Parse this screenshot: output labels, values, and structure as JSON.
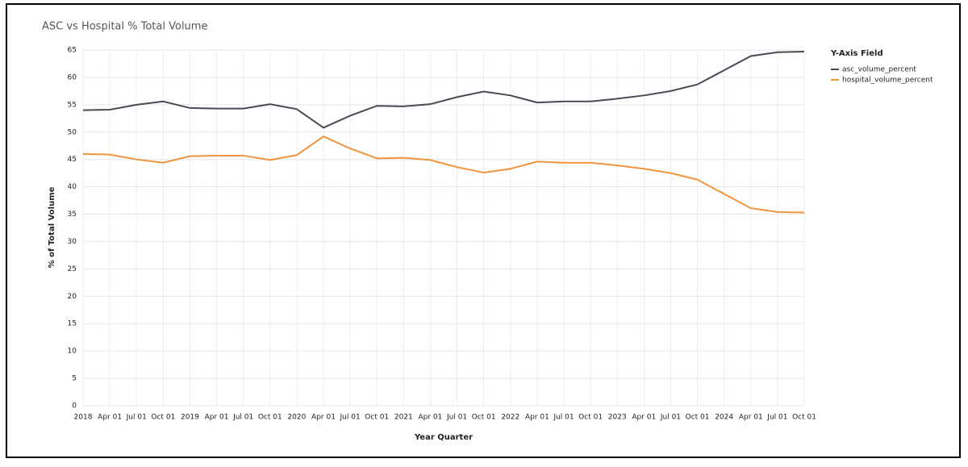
{
  "chart_data": {
    "type": "line",
    "title": "ASC vs Hospital % Total Volume",
    "x_label": "Year Quarter",
    "y_label": "% of Total Volume",
    "legend_title": "Y-Axis Field",
    "legend_position": "right",
    "grid": true,
    "categories": [
      "2018",
      "Apr 01",
      "Jul 01",
      "Oct 01",
      "2019",
      "Apr 01",
      "Jul 01",
      "Oct 01",
      "2020",
      "Apr 01",
      "Jul 01",
      "Oct 01",
      "2021",
      "Apr 01",
      "Jul 01",
      "Oct 01",
      "2022",
      "Apr 01",
      "Jul 01",
      "Oct 01",
      "2023",
      "Apr 01",
      "Jul 01",
      "Oct 01",
      "2024",
      "Apr 01",
      "Jul 01",
      "Oct 01"
    ],
    "series": [
      {
        "name": "asc_volume_percent",
        "color": "#4a4a55",
        "values": [
          54.0,
          54.1,
          55.0,
          55.6,
          54.4,
          54.3,
          54.3,
          55.1,
          54.2,
          50.8,
          53.0,
          54.8,
          54.7,
          55.1,
          56.4,
          57.4,
          56.7,
          55.4,
          55.6,
          55.6,
          56.1,
          56.7,
          57.5,
          58.7,
          61.3,
          63.9,
          64.6,
          64.7
        ]
      },
      {
        "name": "hospital_volume_percent",
        "color": "#f0953d",
        "values": [
          46.0,
          45.9,
          45.0,
          44.4,
          45.6,
          45.7,
          45.7,
          44.9,
          45.8,
          49.2,
          47.0,
          45.2,
          45.3,
          44.9,
          43.6,
          42.6,
          43.3,
          44.6,
          44.4,
          44.4,
          43.9,
          43.3,
          42.5,
          41.3,
          38.7,
          36.1,
          35.4,
          35.3
        ]
      }
    ],
    "ylim": [
      0,
      65
    ],
    "yticks": [
      0,
      5,
      10,
      15,
      20,
      25,
      30,
      35,
      40,
      45,
      50,
      55,
      60,
      65
    ]
  }
}
